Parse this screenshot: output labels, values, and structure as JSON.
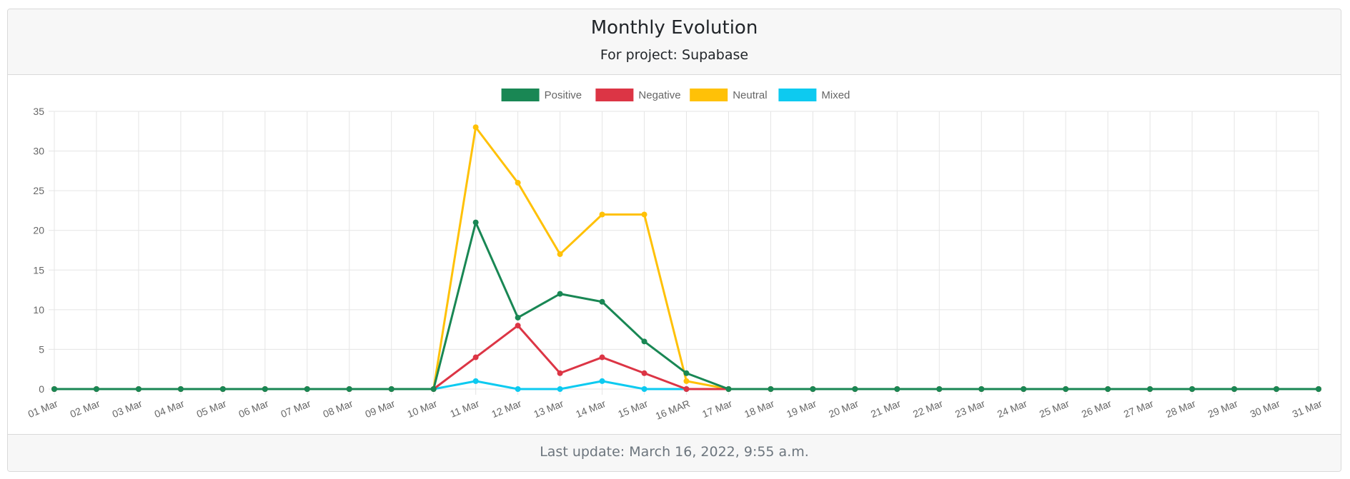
{
  "header": {
    "title": "Monthly Evolution",
    "subtitle": "For project: Supabase"
  },
  "footer": {
    "text": "Last update: March 16, 2022, 9:55 a.m."
  },
  "chart_data": {
    "type": "line",
    "title": "",
    "xlabel": "",
    "ylabel": "",
    "ylim": [
      0,
      35
    ],
    "yticks": [
      0,
      5,
      10,
      15,
      20,
      25,
      30,
      35
    ],
    "grid": true,
    "legend_position": "top-center",
    "categories": [
      "01 Mar",
      "02 Mar",
      "03 Mar",
      "04 Mar",
      "05 Mar",
      "06 Mar",
      "07 Mar",
      "08 Mar",
      "09 Mar",
      "10 Mar",
      "11 Mar",
      "12 Mar",
      "13 Mar",
      "14 Mar",
      "15 Mar",
      "16 MAR",
      "17 Mar",
      "18 Mar",
      "19 Mar",
      "20 Mar",
      "21 Mar",
      "22 Mar",
      "23 Mar",
      "24 Mar",
      "25 Mar",
      "26 Mar",
      "27 Mar",
      "28 Mar",
      "29 Mar",
      "30 Mar",
      "31 Mar"
    ],
    "series": [
      {
        "name": "Mixed",
        "color": "#0dcaf0",
        "values": [
          0,
          0,
          0,
          0,
          0,
          0,
          0,
          0,
          0,
          0,
          1,
          0,
          0,
          1,
          0,
          0,
          0,
          0,
          0,
          0,
          0,
          0,
          0,
          0,
          0,
          0,
          0,
          0,
          0,
          0,
          0
        ]
      },
      {
        "name": "Neutral",
        "color": "#ffc107",
        "values": [
          0,
          0,
          0,
          0,
          0,
          0,
          0,
          0,
          0,
          0,
          33,
          26,
          17,
          22,
          22,
          1,
          0,
          0,
          0,
          0,
          0,
          0,
          0,
          0,
          0,
          0,
          0,
          0,
          0,
          0,
          0
        ]
      },
      {
        "name": "Negative",
        "color": "#dc3545",
        "values": [
          0,
          0,
          0,
          0,
          0,
          0,
          0,
          0,
          0,
          0,
          4,
          8,
          2,
          4,
          2,
          0,
          0,
          0,
          0,
          0,
          0,
          0,
          0,
          0,
          0,
          0,
          0,
          0,
          0,
          0,
          0
        ]
      },
      {
        "name": "Positive",
        "color": "#198754",
        "values": [
          0,
          0,
          0,
          0,
          0,
          0,
          0,
          0,
          0,
          0,
          21,
          9,
          12,
          11,
          6,
          2,
          0,
          0,
          0,
          0,
          0,
          0,
          0,
          0,
          0,
          0,
          0,
          0,
          0,
          0,
          0
        ]
      }
    ],
    "legend": [
      "Positive",
      "Negative",
      "Neutral",
      "Mixed"
    ],
    "colors": {
      "grid": "#e5e5e5",
      "axis_text": "#666666"
    }
  }
}
